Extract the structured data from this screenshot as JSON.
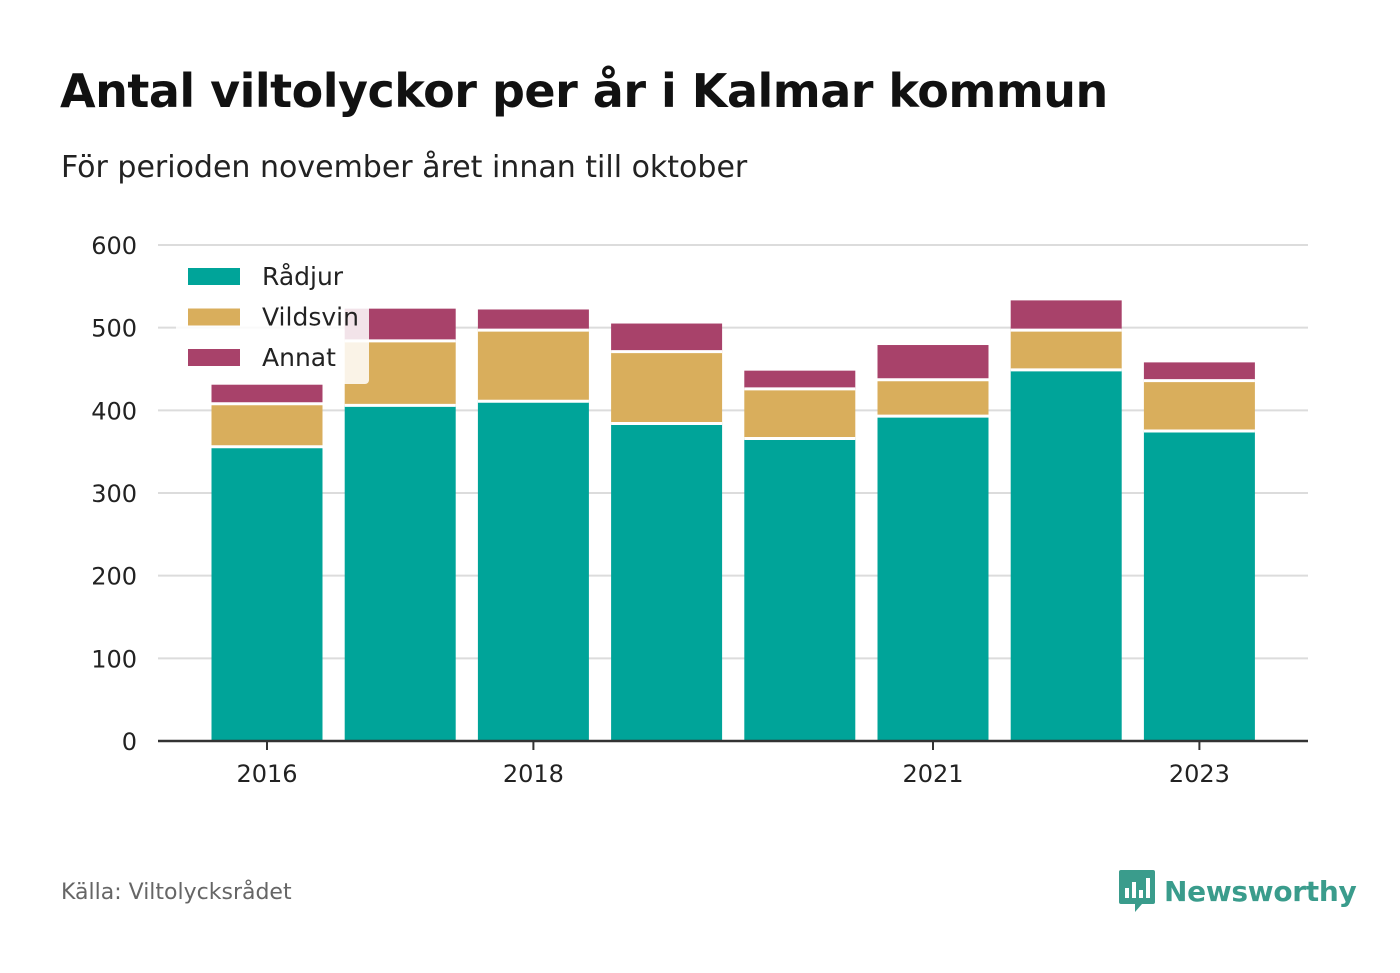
{
  "title": "Antal viltolyckor per år i Kalmar kommun",
  "subtitle": "För perioden november året innan till oktober",
  "source": "Källa: Viltolycksrådet",
  "brand": {
    "name": "Newsworthy",
    "icon": "bar-chart-speech-bubble-icon",
    "color": "#3a9c8c"
  },
  "chart_data": {
    "type": "bar",
    "stacked": true,
    "categories": [
      "2016",
      "2017",
      "2018",
      "2019",
      "2020",
      "2021",
      "2022",
      "2023"
    ],
    "x_tick_labels": [
      "2016",
      "2018",
      "2021",
      "2023"
    ],
    "series": [
      {
        "name": "Rådjur",
        "color": "#00a499",
        "values": [
          356,
          406,
          411,
          384,
          366,
          393,
          449,
          375
        ]
      },
      {
        "name": "Vildsvin",
        "color": "#d9ae5c",
        "values": [
          52,
          78,
          86,
          87,
          60,
          44,
          48,
          61
        ]
      },
      {
        "name": "Annat",
        "color": "#a8426a",
        "values": [
          23,
          39,
          25,
          34,
          22,
          42,
          36,
          22
        ]
      }
    ],
    "ylim": [
      0,
      600
    ],
    "yticks": [
      0,
      100,
      200,
      300,
      400,
      500,
      600
    ],
    "grid": true,
    "legend_position": "top-left"
  }
}
